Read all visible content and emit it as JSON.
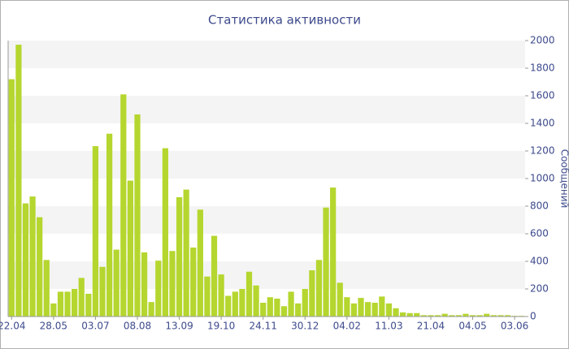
{
  "chart_data": {
    "type": "bar",
    "title": "Статистика активности",
    "y_label": "Сообщений",
    "color": "#b5d62f",
    "categories": [
      "22.04",
      null,
      null,
      null,
      null,
      null,
      "28.05",
      null,
      null,
      null,
      null,
      null,
      "03.07",
      null,
      null,
      null,
      null,
      null,
      "08.08",
      null,
      null,
      null,
      null,
      null,
      "13.09",
      null,
      null,
      null,
      null,
      null,
      "19.10",
      null,
      null,
      null,
      null,
      null,
      "24.11",
      null,
      null,
      null,
      null,
      null,
      "30.12",
      null,
      null,
      null,
      null,
      null,
      "04.02",
      null,
      null,
      null,
      null,
      null,
      "11.03",
      null,
      null,
      null,
      null,
      null,
      "21.04",
      null,
      null,
      null,
      null,
      null,
      "04.05",
      null,
      null,
      null,
      null,
      null,
      "03.06",
      null
    ],
    "values": [
      1720,
      1970,
      820,
      870,
      720,
      410,
      95,
      180,
      180,
      200,
      280,
      165,
      1235,
      360,
      1325,
      485,
      1610,
      985,
      1465,
      465,
      105,
      405,
      1220,
      475,
      865,
      920,
      500,
      775,
      290,
      585,
      305,
      150,
      180,
      200,
      325,
      225,
      100,
      140,
      130,
      75,
      180,
      95,
      200,
      335,
      410,
      790,
      935,
      245,
      140,
      95,
      135,
      105,
      100,
      145,
      95,
      60,
      30,
      25,
      25,
      10,
      10,
      10,
      20,
      10,
      10,
      20,
      10,
      10,
      20,
      10,
      10,
      10,
      5,
      5
    ],
    "ylim": [
      0,
      2000
    ],
    "yticks": [
      0,
      200,
      400,
      600,
      800,
      1000,
      1200,
      1400,
      1600,
      1800,
      2000
    ],
    "grid": true,
    "y_axis_side": "right"
  }
}
